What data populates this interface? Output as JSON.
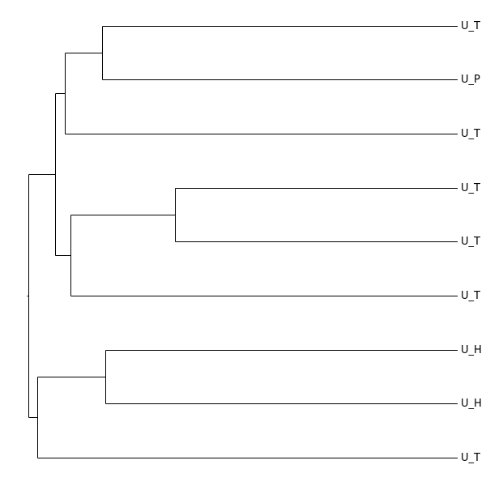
{
  "leaves": [
    "U_T",
    "U_P",
    "U_T",
    "U_T",
    "U_T",
    "U_T",
    "U_H",
    "U_H",
    "U_T"
  ]
}
